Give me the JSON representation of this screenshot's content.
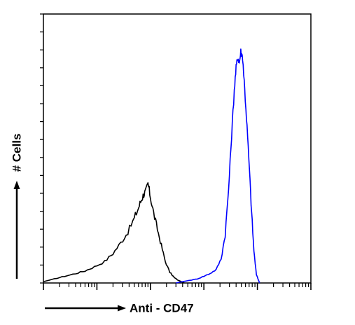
{
  "chart_data": {
    "type": "line",
    "title": "",
    "xlabel": "Anti - CD47",
    "ylabel": "# Cells",
    "x_scale": "log",
    "xlim": [
      1,
      100000
    ],
    "ylim": [
      0,
      100
    ],
    "grid": false,
    "legend": "none",
    "series": [
      {
        "color": "#000000",
        "x": [
          1,
          1.6,
          2.5,
          4,
          6,
          9,
          14,
          20,
          28,
          38,
          50,
          60,
          68,
          75,
          82,
          90,
          100,
          115,
          135,
          160,
          190,
          230,
          280,
          330,
          380,
          430
        ],
        "y": [
          0.5,
          1.5,
          2.5,
          3.5,
          4.5,
          6,
          8,
          11,
          15,
          19,
          24,
          28,
          31,
          33,
          34,
          37,
          32,
          26,
          20,
          14,
          8,
          4,
          2,
          1,
          0.5,
          0
        ]
      },
      {
        "color": "#0000ff",
        "x": [
          300,
          400,
          550,
          750,
          1000,
          1300,
          1700,
          2100,
          2500,
          2900,
          3300,
          3700,
          4000,
          4300,
          4600,
          4900,
          5300,
          5800,
          6400,
          7100,
          7800,
          8600,
          9600,
          11000
        ],
        "y": [
          0,
          0.5,
          1,
          1.5,
          2.5,
          3.5,
          5,
          9,
          18,
          35,
          55,
          72,
          80,
          84,
          82,
          86,
          84,
          72,
          58,
          42,
          26,
          12,
          3,
          0
        ]
      }
    ]
  }
}
